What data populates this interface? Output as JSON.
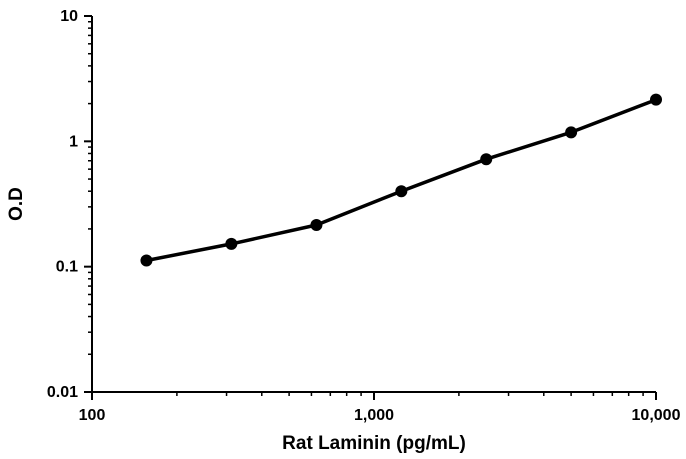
{
  "chart_data": {
    "type": "line",
    "x_scale": "log",
    "y_scale": "log",
    "xlabel": "Rat Laminin (pg/mL)",
    "ylabel": "O.D",
    "xlim": [
      100,
      10000
    ],
    "ylim": [
      0.01,
      10
    ],
    "x_ticks": [
      100,
      1000,
      10000
    ],
    "x_tick_labels": [
      "100",
      "1,000",
      "10,000"
    ],
    "y_ticks": [
      0.01,
      0.1,
      1,
      10
    ],
    "y_tick_labels": [
      "0.01",
      "0.1",
      "1",
      "10"
    ],
    "grid": false,
    "series": [
      {
        "x": [
          156,
          312,
          625,
          1250,
          2500,
          5000,
          10000
        ],
        "y": [
          0.112,
          0.152,
          0.215,
          0.4,
          0.72,
          1.18,
          2.15
        ]
      }
    ],
    "color": "#000000"
  }
}
